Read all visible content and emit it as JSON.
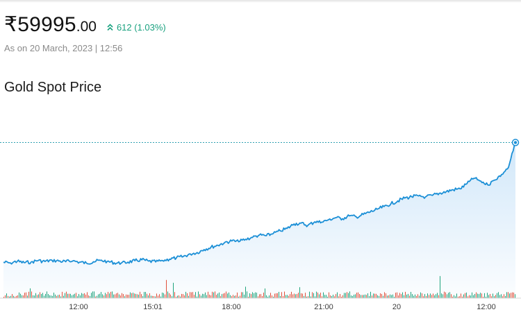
{
  "quote": {
    "currency": "₹",
    "price_int": "59995",
    "price_dec": ".00",
    "change": "612 (1.03%)",
    "as_of": "As on 20 March, 2023 | 12:56",
    "up_color": "#19a17f"
  },
  "chart_title": "Gold Spot Price",
  "chart_data": {
    "type": "area",
    "title": "Gold Spot Price",
    "xlabel": "",
    "ylabel": "",
    "x_ticks": [
      "12:00",
      "15:01",
      "18:00",
      "21:00",
      "20",
      "12:00"
    ],
    "ylim": [
      59200,
      60050
    ],
    "series": [
      {
        "values": [
          59383,
          59380,
          59388,
          59381,
          59385,
          59392,
          59387,
          59394,
          59389,
          59386,
          59390,
          59384,
          59379,
          59386,
          59393,
          59388,
          59381,
          59378,
          59384,
          59391,
          59396,
          59389,
          59385,
          59392,
          59399,
          59406,
          59413,
          59426,
          59433,
          59448,
          59461,
          59470,
          59485,
          59492,
          59488,
          59501,
          59510,
          59523,
          59519,
          59530,
          59544,
          59556,
          59579,
          59583,
          59572,
          59590,
          59588,
          59601,
          59611,
          59606,
          59620,
          59615,
          59627,
          59640,
          59654,
          59668,
          59682,
          59697,
          59711,
          59718,
          59722,
          59717,
          59725,
          59736,
          59744,
          59754,
          59758,
          59785,
          59812,
          59798,
          59778,
          59803,
          59832,
          59868,
          59995
        ],
        "color": "#1b8fd6"
      }
    ],
    "volume_colors": {
      "up": "#1fa37e",
      "down": "#e0503c"
    },
    "line_color": "#1b8fd6",
    "fill_color": "#cfe6f9",
    "reference_line": "dotted at last price"
  }
}
